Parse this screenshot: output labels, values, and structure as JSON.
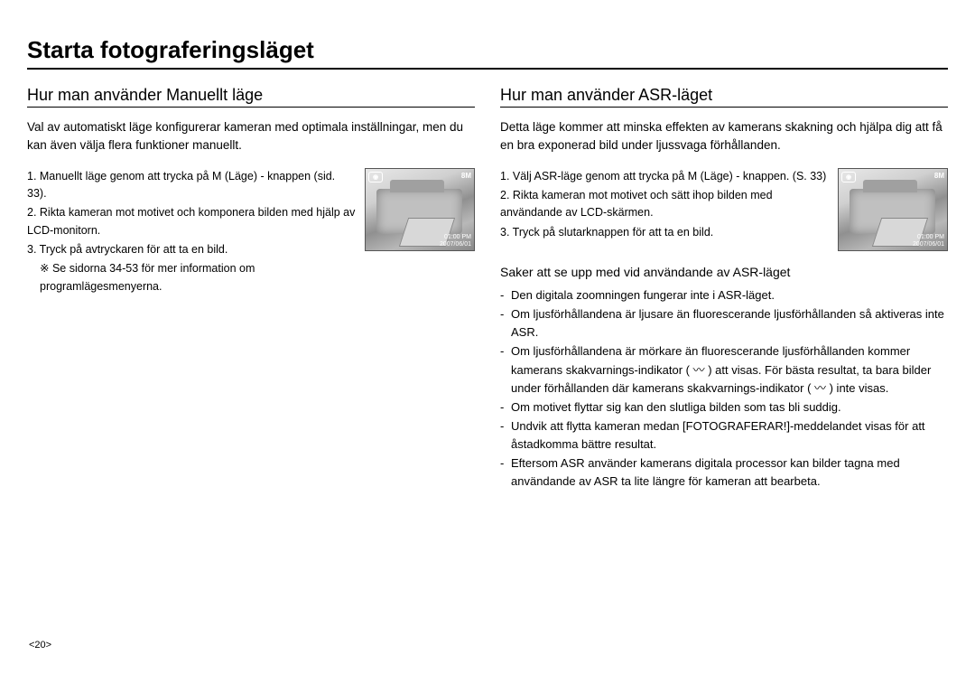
{
  "page_title": "Starta fotograferingsläget",
  "page_number": "<20>",
  "thumb": {
    "right_badge": "8M",
    "time": "01:00 PM",
    "date": "2007/06/01"
  },
  "left": {
    "section_title": "Hur man använder Manuellt läge",
    "intro": "Val av automatiskt läge konfigurerar kameran med optimala inställningar, men du kan även välja flera funktioner manuellt.",
    "steps": [
      "1. Manuellt läge genom att trycka på M (Läge) - knappen (sid. 33).",
      "2. Rikta kameran mot motivet och komponera bilden med hjälp av LCD-monitorn.",
      "3. Tryck på avtryckaren för att ta en bild."
    ],
    "note": "※ Se sidorna 34-53 för mer information om programlägesmenyerna."
  },
  "right": {
    "section_title": "Hur man använder ASR-läget",
    "intro": "Detta läge kommer att minska effekten av kamerans skakning och hjälpa dig att få en bra exponerad bild under ljussvaga förhållanden.",
    "steps": [
      "1. Välj ASR-läge genom att trycka på M (Läge) - knappen. (S. 33)",
      "2. Rikta kameran mot motivet och sätt ihop bilden med användande av LCD-skärmen.",
      "3. Tryck på slutarknappen för att ta en bild."
    ],
    "sub_title": "Saker att se upp med vid användande av ASR-läget",
    "bullets": [
      "Den digitala zoomningen fungerar inte i ASR-läget.",
      "Om ljusförhållandena är ljusare än fluorescerande ljusförhållanden så aktiveras inte ASR.",
      "Om ljusförhållandena är mörkare än fluorescerande ljusförhållanden kommer kamerans skakvarnings-indikator ( 〰 ) att visas. För bästa resultat, ta bara bilder under förhållanden där kamerans skakvarnings-indikator ( 〰 ) inte visas.",
      "Om motivet flyttar sig kan den slutliga bilden som tas bli suddig.",
      "Undvik att flytta kameran medan [FOTOGRAFERAR!]-meddelandet visas för att åstadkomma bättre resultat.",
      "Eftersom ASR använder kamerans digitala processor kan bilder tagna med användande av ASR ta lite längre för kameran att bearbeta."
    ]
  }
}
